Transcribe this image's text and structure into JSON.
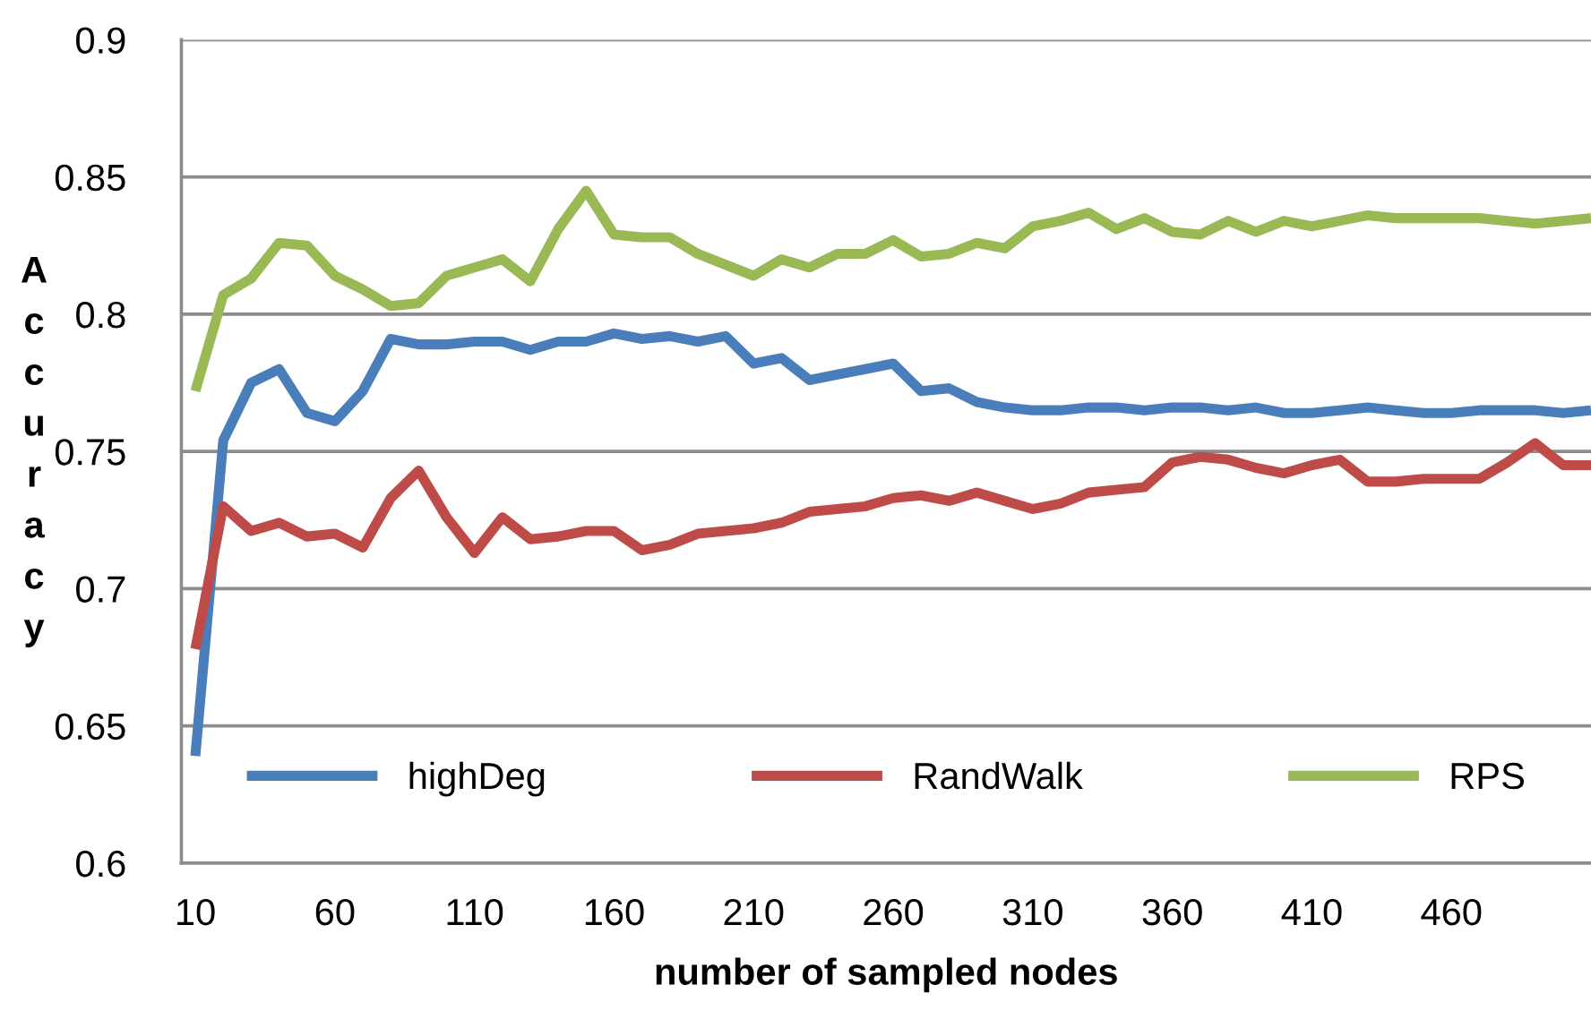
{
  "chart_data": {
    "type": "line",
    "xlabel": "number of sampled nodes",
    "ylabel": "Accuracy",
    "x": [
      10,
      20,
      30,
      40,
      50,
      60,
      70,
      80,
      90,
      100,
      110,
      120,
      130,
      140,
      150,
      160,
      170,
      180,
      190,
      200,
      210,
      220,
      230,
      240,
      250,
      260,
      270,
      280,
      290,
      300,
      310,
      320,
      330,
      340,
      350,
      360,
      370,
      380,
      390,
      400,
      410,
      420,
      430,
      440,
      450,
      460,
      470,
      480,
      490,
      500,
      510
    ],
    "series": [
      {
        "name": "highDeg",
        "color": "#4a7ebb",
        "values": [
          0.639,
          0.754,
          0.775,
          0.78,
          0.764,
          0.761,
          0.772,
          0.791,
          0.789,
          0.789,
          0.79,
          0.79,
          0.787,
          0.79,
          0.79,
          0.793,
          0.791,
          0.792,
          0.79,
          0.792,
          0.782,
          0.784,
          0.776,
          0.778,
          0.78,
          0.782,
          0.772,
          0.773,
          0.768,
          0.766,
          0.765,
          0.765,
          0.766,
          0.766,
          0.765,
          0.766,
          0.766,
          0.765,
          0.766,
          0.764,
          0.764,
          0.765,
          0.766,
          0.765,
          0.764,
          0.764,
          0.765,
          0.765,
          0.765,
          0.764,
          0.765
        ]
      },
      {
        "name": "RandWalk",
        "color": "#be4b48",
        "values": [
          0.678,
          0.73,
          0.721,
          0.724,
          0.719,
          0.72,
          0.715,
          0.733,
          0.743,
          0.726,
          0.713,
          0.726,
          0.718,
          0.719,
          0.721,
          0.721,
          0.714,
          0.716,
          0.72,
          0.721,
          0.722,
          0.724,
          0.728,
          0.729,
          0.73,
          0.733,
          0.734,
          0.732,
          0.735,
          0.732,
          0.729,
          0.731,
          0.735,
          0.736,
          0.737,
          0.746,
          0.748,
          0.747,
          0.744,
          0.742,
          0.745,
          0.747,
          0.739,
          0.739,
          0.74,
          0.74,
          0.74,
          0.746,
          0.753,
          0.745,
          0.745
        ]
      },
      {
        "name": "RPS",
        "color": "#98b954",
        "values": [
          0.772,
          0.807,
          0.813,
          0.826,
          0.825,
          0.814,
          0.809,
          0.803,
          0.804,
          0.814,
          0.817,
          0.82,
          0.812,
          0.831,
          0.845,
          0.829,
          0.828,
          0.828,
          0.822,
          0.818,
          0.814,
          0.82,
          0.817,
          0.822,
          0.822,
          0.827,
          0.821,
          0.822,
          0.826,
          0.824,
          0.832,
          0.834,
          0.837,
          0.831,
          0.835,
          0.83,
          0.829,
          0.834,
          0.83,
          0.834,
          0.832,
          0.834,
          0.836,
          0.835,
          0.835,
          0.835,
          0.835,
          0.834,
          0.833,
          0.834,
          0.835
        ]
      }
    ],
    "xlim": [
      5,
      510
    ],
    "xticks": [
      10,
      60,
      110,
      160,
      210,
      260,
      310,
      360,
      410,
      460
    ],
    "ylim": [
      0.6,
      0.9
    ],
    "yticks": [
      0.6,
      0.65,
      0.7,
      0.75,
      0.8,
      0.85,
      0.9
    ],
    "grid": "y",
    "legend": "bottom",
    "line_style": "solid",
    "marker": "none"
  }
}
